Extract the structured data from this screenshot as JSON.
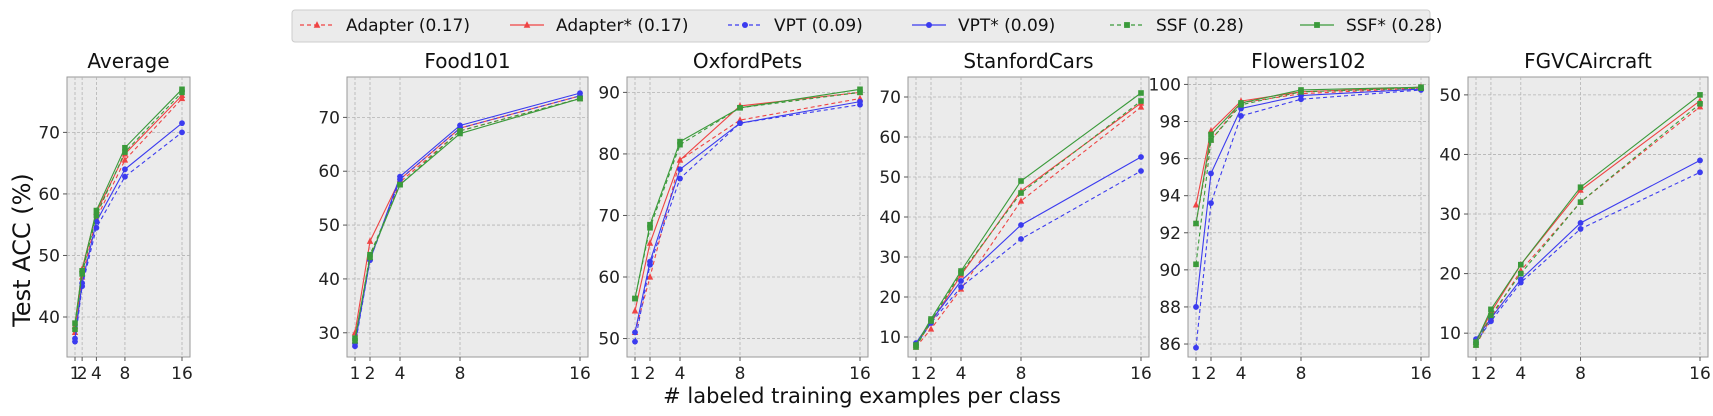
{
  "figure": {
    "ylabel": "Test ACC (%)",
    "xlabel": "# labeled training examples per class"
  },
  "legend": [
    {
      "label": "Adapter (0.17)",
      "color": "#ef4444",
      "style": "dashed",
      "marker": "triangle"
    },
    {
      "label": "Adapter* (0.17)",
      "color": "#ef4444",
      "style": "solid",
      "marker": "triangle"
    },
    {
      "label": "VPT (0.09)",
      "color": "#3b3bef",
      "style": "dashed",
      "marker": "circle"
    },
    {
      "label": "VPT* (0.09)",
      "color": "#3b3bef",
      "style": "solid",
      "marker": "circle"
    },
    {
      "label": "SSF (0.28)",
      "color": "#3a9a3a",
      "style": "dashed",
      "marker": "square"
    },
    {
      "label": "SSF* (0.28)",
      "color": "#3a9a3a",
      "style": "solid",
      "marker": "square"
    }
  ],
  "chart_data": [
    {
      "type": "line",
      "title": "Average",
      "x": [
        1,
        2,
        4,
        8,
        16
      ],
      "xticks": [
        "1",
        "2",
        "4",
        "8",
        "16"
      ],
      "ylim": [
        33.5,
        79
      ],
      "yticks": [
        40,
        50,
        60,
        70
      ],
      "series": [
        {
          "name": "Adapter (0.17)",
          "values": [
            37.5,
            46.5,
            56.0,
            65.5,
            75.5
          ]
        },
        {
          "name": "Adapter* (0.17)",
          "values": [
            38.5,
            47.8,
            57.0,
            66.5,
            76.0
          ]
        },
        {
          "name": "VPT (0.09)",
          "values": [
            36.0,
            45.0,
            54.5,
            62.8,
            70.0
          ]
        },
        {
          "name": "VPT* (0.09)",
          "values": [
            36.5,
            45.5,
            55.5,
            64.0,
            71.5
          ]
        },
        {
          "name": "SSF (0.28)",
          "values": [
            38.0,
            47.0,
            56.5,
            66.8,
            76.5
          ]
        },
        {
          "name": "SSF* (0.28)",
          "values": [
            39.0,
            47.5,
            57.3,
            67.5,
            77.0
          ]
        }
      ]
    },
    {
      "type": "line",
      "title": "Food101",
      "x": [
        1,
        2,
        4,
        8,
        16
      ],
      "xticks": [
        "1",
        "2",
        "4",
        "8",
        "16"
      ],
      "ylim": [
        25.5,
        77.5
      ],
      "yticks": [
        30,
        40,
        50,
        60,
        70
      ],
      "series": [
        {
          "name": "Adapter (0.17)",
          "values": [
            28.5,
            44.0,
            58.0,
            67.5,
            73.5
          ]
        },
        {
          "name": "Adapter* (0.17)",
          "values": [
            30.0,
            47.0,
            58.5,
            68.0,
            74.0
          ]
        },
        {
          "name": "VPT (0.09)",
          "values": [
            27.5,
            43.5,
            58.5,
            68.0,
            74.0
          ]
        },
        {
          "name": "VPT* (0.09)",
          "values": [
            28.0,
            43.5,
            59.0,
            68.5,
            74.5
          ]
        },
        {
          "name": "SSF (0.28)",
          "values": [
            28.5,
            44.5,
            57.5,
            67.5,
            73.5
          ]
        },
        {
          "name": "SSF* (0.28)",
          "values": [
            29.0,
            44.0,
            57.5,
            67.0,
            73.5
          ]
        }
      ]
    },
    {
      "type": "line",
      "title": "OxfordPets",
      "x": [
        1,
        2,
        4,
        8,
        16
      ],
      "xticks": [
        "1",
        "2",
        "4",
        "8",
        "16"
      ],
      "ylim": [
        47,
        92.5
      ],
      "yticks": [
        50,
        60,
        70,
        80,
        90
      ],
      "series": [
        {
          "name": "Adapter (0.17)",
          "values": [
            51.0,
            60.0,
            79.0,
            85.5,
            89.0
          ]
        },
        {
          "name": "Adapter* (0.17)",
          "values": [
            54.5,
            65.5,
            79.0,
            87.8,
            90.0
          ]
        },
        {
          "name": "VPT (0.09)",
          "values": [
            49.5,
            62.0,
            76.0,
            85.0,
            88.0
          ]
        },
        {
          "name": "VPT* (0.09)",
          "values": [
            51.0,
            62.5,
            77.5,
            85.0,
            88.5
          ]
        },
        {
          "name": "SSF (0.28)",
          "values": [
            56.5,
            68.0,
            81.5,
            87.5,
            90.0
          ]
        },
        {
          "name": "SSF* (0.28)",
          "values": [
            56.5,
            68.5,
            82.0,
            87.5,
            90.5
          ]
        }
      ]
    },
    {
      "type": "line",
      "title": "StanfordCars",
      "x": [
        1,
        2,
        4,
        8,
        16
      ],
      "xticks": [
        "1",
        "2",
        "4",
        "8",
        "16"
      ],
      "ylim": [
        5,
        75
      ],
      "yticks": [
        10,
        20,
        30,
        40,
        50,
        60,
        70
      ],
      "series": [
        {
          "name": "Adapter (0.17)",
          "values": [
            7.5,
            12.0,
            22.0,
            44.0,
            67.5
          ]
        },
        {
          "name": "Adapter* (0.17)",
          "values": [
            8.0,
            13.5,
            25.5,
            46.5,
            68.5
          ]
        },
        {
          "name": "VPT (0.09)",
          "values": [
            8.0,
            13.5,
            22.5,
            34.5,
            51.5
          ]
        },
        {
          "name": "VPT* (0.09)",
          "values": [
            8.5,
            14.0,
            24.0,
            38.0,
            55.0
          ]
        },
        {
          "name": "SSF (0.28)",
          "values": [
            7.5,
            14.0,
            26.0,
            46.0,
            69.0
          ]
        },
        {
          "name": "SSF* (0.28)",
          "values": [
            8.0,
            14.5,
            26.5,
            49.0,
            71.0
          ]
        }
      ]
    },
    {
      "type": "line",
      "title": "Flowers102",
      "x": [
        1,
        2,
        4,
        8,
        16
      ],
      "xticks": [
        "1",
        "2",
        "4",
        "8",
        "16"
      ],
      "ylim": [
        85.3,
        100.4
      ],
      "yticks": [
        86,
        88,
        90,
        92,
        94,
        96,
        98,
        100
      ],
      "series": [
        {
          "name": "Adapter (0.17)",
          "values": [
            92.5,
            97.0,
            99.0,
            99.5,
            99.8
          ]
        },
        {
          "name": "Adapter* (0.17)",
          "values": [
            93.5,
            97.5,
            99.1,
            99.6,
            99.85
          ]
        },
        {
          "name": "VPT (0.09)",
          "values": [
            85.8,
            93.6,
            98.3,
            99.2,
            99.7
          ]
        },
        {
          "name": "VPT* (0.09)",
          "values": [
            88.0,
            95.2,
            98.7,
            99.4,
            99.75
          ]
        },
        {
          "name": "SSF (0.28)",
          "values": [
            90.3,
            97.0,
            98.9,
            99.6,
            99.8
          ]
        },
        {
          "name": "SSF* (0.28)",
          "values": [
            92.5,
            97.3,
            99.0,
            99.7,
            99.85
          ]
        }
      ]
    },
    {
      "type": "line",
      "title": "FGVCAircraft",
      "x": [
        1,
        2,
        4,
        8,
        16
      ],
      "xticks": [
        "1",
        "2",
        "4",
        "8",
        "16"
      ],
      "ylim": [
        6,
        53
      ],
      "yticks": [
        10,
        20,
        30,
        40,
        50
      ],
      "series": [
        {
          "name": "Adapter (0.17)",
          "values": [
            8.0,
            12.5,
            20.5,
            32.0,
            48.0
          ]
        },
        {
          "name": "Adapter* (0.17)",
          "values": [
            8.5,
            13.5,
            21.5,
            34.0,
            49.0
          ]
        },
        {
          "name": "VPT (0.09)",
          "values": [
            8.5,
            12.0,
            18.5,
            27.5,
            37.0
          ]
        },
        {
          "name": "VPT* (0.09)",
          "values": [
            9.0,
            12.5,
            19.0,
            28.5,
            39.0
          ]
        },
        {
          "name": "SSF (0.28)",
          "values": [
            8.0,
            13.0,
            20.0,
            32.0,
            48.5
          ]
        },
        {
          "name": "SSF* (0.28)",
          "values": [
            8.5,
            14.0,
            21.5,
            34.5,
            50.0
          ]
        }
      ]
    }
  ]
}
